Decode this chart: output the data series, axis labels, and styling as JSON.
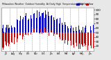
{
  "title": "Milwaukee Weather Outdoor Humidity At Daily High Temperature (Past Year)",
  "bg_color": "#e8e8e8",
  "plot_bg": "#ffffff",
  "bar_color_high": "#0000cc",
  "bar_color_low": "#cc0000",
  "legend_label_high": "Outdoor Humidity High",
  "legend_label_low": "Outdoor Humidity Low",
  "ylim": [
    10,
    105
  ],
  "yticks": [
    20,
    30,
    40,
    50,
    60,
    70,
    80,
    90,
    100
  ],
  "n_days": 365,
  "seed": 12
}
